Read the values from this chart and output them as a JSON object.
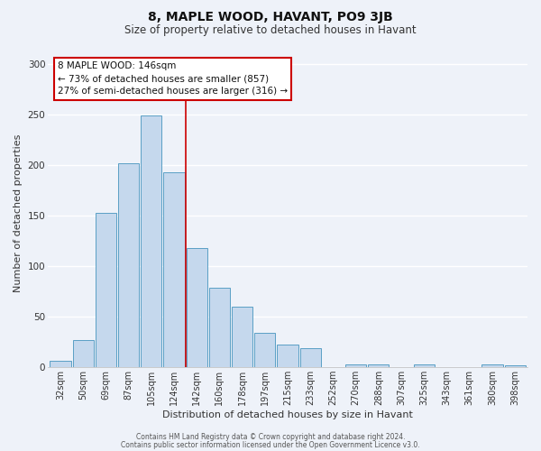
{
  "title": "8, MAPLE WOOD, HAVANT, PO9 3JB",
  "subtitle": "Size of property relative to detached houses in Havant",
  "xlabel": "Distribution of detached houses by size in Havant",
  "ylabel": "Number of detached properties",
  "bar_labels": [
    "32sqm",
    "50sqm",
    "69sqm",
    "87sqm",
    "105sqm",
    "124sqm",
    "142sqm",
    "160sqm",
    "178sqm",
    "197sqm",
    "215sqm",
    "233sqm",
    "252sqm",
    "270sqm",
    "288sqm",
    "307sqm",
    "325sqm",
    "343sqm",
    "361sqm",
    "380sqm",
    "398sqm"
  ],
  "bar_values": [
    6,
    27,
    153,
    202,
    249,
    193,
    118,
    79,
    60,
    34,
    22,
    19,
    0,
    3,
    3,
    0,
    3,
    0,
    0,
    3,
    2
  ],
  "bar_color": "#c5d8ed",
  "bar_edge_color": "#5a9fc5",
  "annotation_title": "8 MAPLE WOOD: 146sqm",
  "annotation_line1": "← 73% of detached houses are smaller (857)",
  "annotation_line2": "27% of semi-detached houses are larger (316) →",
  "vline_color": "#cc0000",
  "vline_x_index": 6,
  "ylim_max": 305,
  "yticks": [
    0,
    50,
    100,
    150,
    200,
    250,
    300
  ],
  "footer_line1": "Contains HM Land Registry data © Crown copyright and database right 2024.",
  "footer_line2": "Contains public sector information licensed under the Open Government Licence v3.0.",
  "background_color": "#eef2f9",
  "grid_color": "#ffffff",
  "annotation_box_facecolor": "#ffffff",
  "annotation_box_edgecolor": "#cc0000",
  "title_fontsize": 10,
  "subtitle_fontsize": 8.5,
  "axis_label_fontsize": 8,
  "tick_fontsize": 7,
  "annotation_fontsize": 7.5,
  "footer_fontsize": 5.5
}
